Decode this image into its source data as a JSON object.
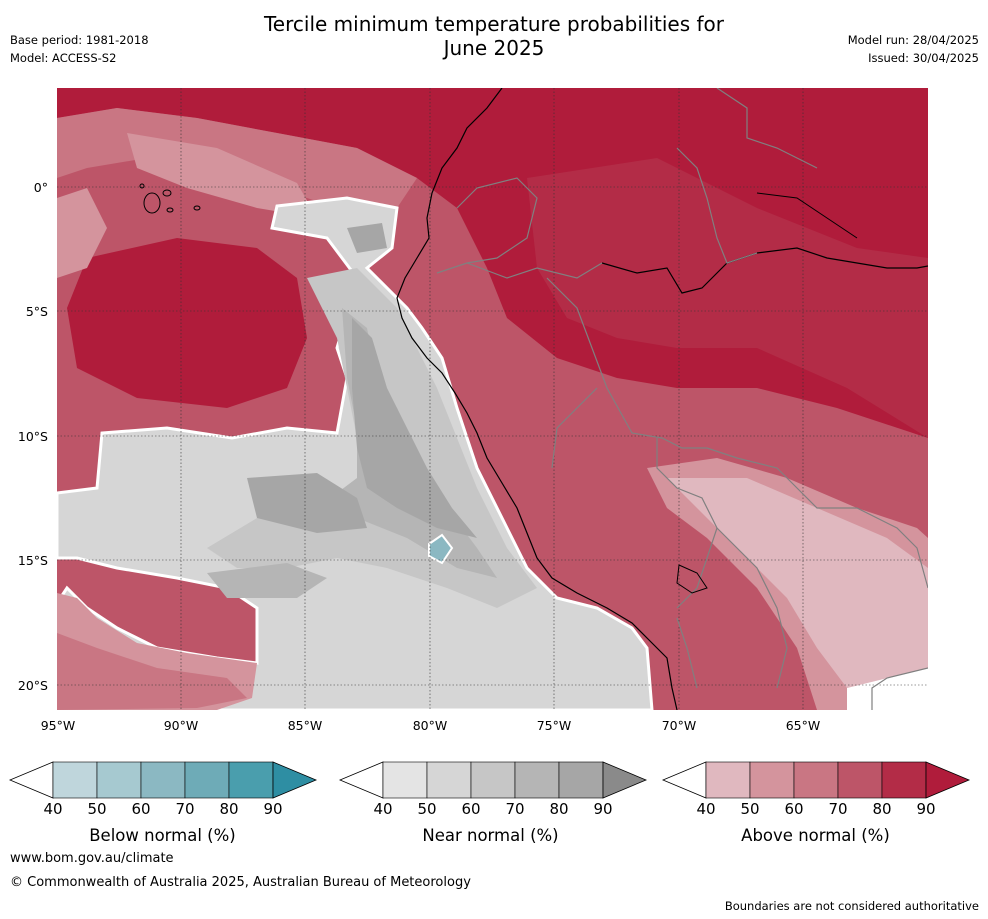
{
  "header": {
    "title_line1": "Tercile minimum temperature probabilities for",
    "title_line2": "June 2025",
    "base_period": "Base period: 1981-2018",
    "model": "Model: ACCESS-S2",
    "model_run": "Model run: 28/04/2025",
    "issued": "Issued: 30/04/2025"
  },
  "map": {
    "lat_labels": [
      "0°",
      "5°S",
      "10°S",
      "15°S",
      "20°S"
    ],
    "lon_labels": [
      "95°W",
      "90°W",
      "85°W",
      "80°W",
      "75°W",
      "70°W",
      "65°W"
    ],
    "colors": {
      "above": [
        "#e0b8bf",
        "#d4949d",
        "#c97683",
        "#bd5568",
        "#b32c47",
        "#b01c3b"
      ],
      "near": [
        "#e4e4e4",
        "#d6d6d6",
        "#c6c6c6",
        "#b5b5b5",
        "#a6a6a6"
      ],
      "below": [
        "#bfd6dc",
        "#a6c9d0",
        "#8bb8c2"
      ],
      "coast": "#000000",
      "border": "#808080"
    }
  },
  "colorbars": [
    {
      "label": "Below normal (%)",
      "ticks": [
        "40",
        "50",
        "60",
        "70",
        "80",
        "90"
      ],
      "colors": [
        "#bfd6dc",
        "#a6c9d0",
        "#8bb8c2",
        "#6eabb7",
        "#4a9ead",
        "#2e8ea3"
      ]
    },
    {
      "label": "Near normal (%)",
      "ticks": [
        "40",
        "50",
        "60",
        "70",
        "80",
        "90"
      ],
      "colors": [
        "#e4e4e4",
        "#d6d6d6",
        "#c6c6c6",
        "#b5b5b5",
        "#a6a6a6",
        "#8a8a8a"
      ]
    },
    {
      "label": "Above normal (%)",
      "ticks": [
        "40",
        "50",
        "60",
        "70",
        "80",
        "90"
      ],
      "colors": [
        "#e0b8bf",
        "#d4949d",
        "#c97683",
        "#bd5568",
        "#b32c47",
        "#b01c3b"
      ]
    }
  ],
  "footer": {
    "website": "www.bom.gov.au/climate",
    "copyright": "© Commonwealth of Australia 2025, Australian Bureau of Meteorology",
    "disclaimer": "Boundaries are not considered authoritative"
  }
}
